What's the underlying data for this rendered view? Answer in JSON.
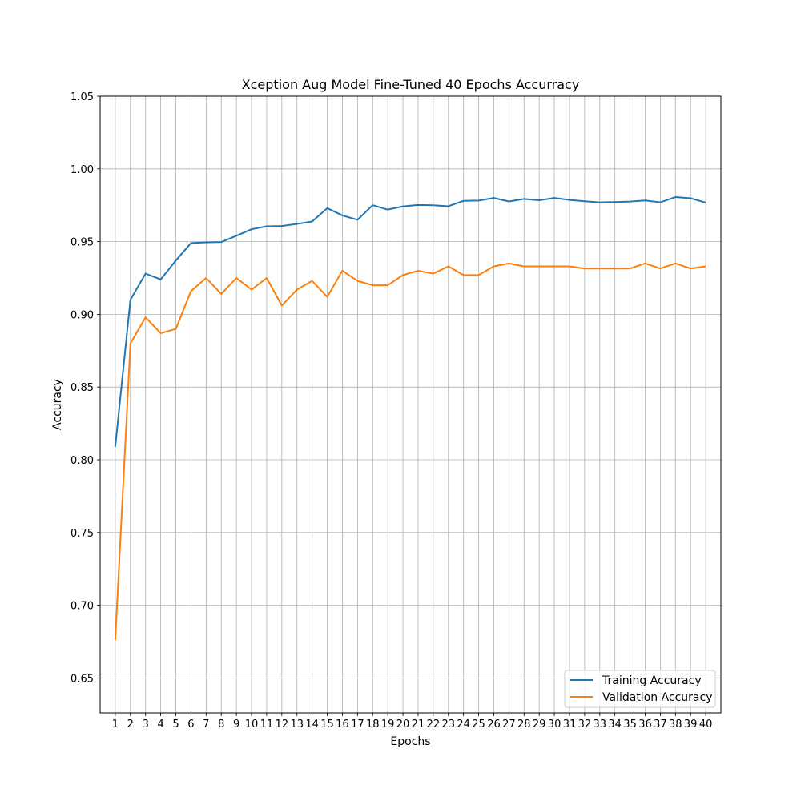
{
  "chart_data": {
    "type": "line",
    "title": "Xception Aug Model Fine-Tuned 40 Epochs Accurracy",
    "xlabel": "Epochs",
    "ylabel": "Accuracy",
    "x": [
      1,
      2,
      3,
      4,
      5,
      6,
      7,
      8,
      9,
      10,
      11,
      12,
      13,
      14,
      15,
      16,
      17,
      18,
      19,
      20,
      21,
      22,
      23,
      24,
      25,
      26,
      27,
      28,
      29,
      30,
      31,
      32,
      33,
      34,
      35,
      36,
      37,
      38,
      39,
      40
    ],
    "xlim": [
      0,
      41
    ],
    "ylim": [
      0.626,
      1.05
    ],
    "yticks": [
      0.65,
      0.7,
      0.75,
      0.8,
      0.85,
      0.9,
      0.95,
      1.0,
      1.05
    ],
    "ytick_labels": [
      "0.65",
      "0.70",
      "0.75",
      "0.80",
      "0.85",
      "0.90",
      "0.95",
      "1.00",
      "1.05"
    ],
    "grid": true,
    "legend_position": "lower-right",
    "series": [
      {
        "name": "Training Accuracy",
        "color": "#1f77b4",
        "values": [
          0.809,
          0.91,
          0.928,
          0.924,
          0.937,
          0.949,
          0.9495,
          0.9497,
          0.954,
          0.9585,
          0.9605,
          0.9607,
          0.9622,
          0.9638,
          0.973,
          0.968,
          0.965,
          0.975,
          0.972,
          0.9742,
          0.9752,
          0.975,
          0.9743,
          0.978,
          0.9782,
          0.98,
          0.9776,
          0.9793,
          0.9784,
          0.98,
          0.9786,
          0.9777,
          0.977,
          0.9772,
          0.9775,
          0.9783,
          0.977,
          0.9806,
          0.9798,
          0.9768
        ]
      },
      {
        "name": "Validation Accuracy",
        "color": "#ff7f0e",
        "values": [
          0.676,
          0.88,
          0.898,
          0.887,
          0.89,
          0.916,
          0.925,
          0.914,
          0.925,
          0.917,
          0.925,
          0.906,
          0.917,
          0.923,
          0.912,
          0.93,
          0.923,
          0.92,
          0.92,
          0.927,
          0.93,
          0.928,
          0.933,
          0.927,
          0.927,
          0.933,
          0.935,
          0.933,
          0.933,
          0.933,
          0.933,
          0.9315,
          0.9315,
          0.9315,
          0.9315,
          0.935,
          0.9315,
          0.935,
          0.9315,
          0.933
        ]
      }
    ]
  }
}
